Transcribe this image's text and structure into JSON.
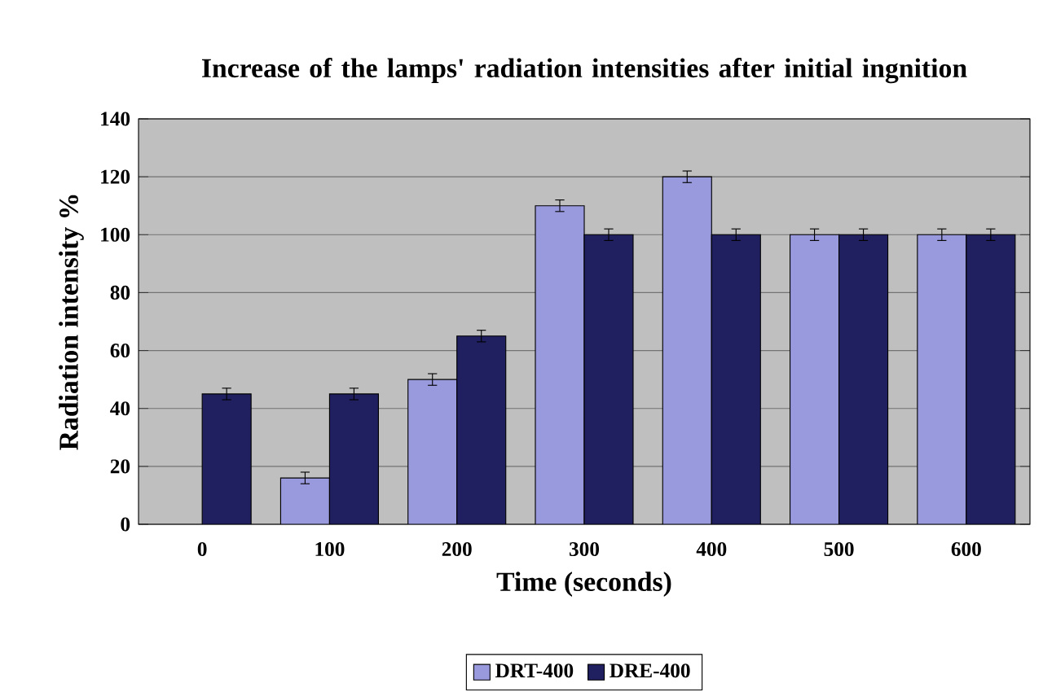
{
  "chart_data": {
    "type": "bar",
    "title": "Increase of the lamps' radiation intensities after initial ingnition",
    "xlabel": "Time (seconds)",
    "ylabel": "Radiation intensity %",
    "categories": [
      "0",
      "100",
      "200",
      "300",
      "400",
      "500",
      "600"
    ],
    "series": [
      {
        "name": "DRT-400",
        "color": "#9999dd",
        "values": [
          null,
          16,
          50,
          110,
          120,
          100,
          100
        ],
        "errors": [
          null,
          2,
          2,
          2,
          2,
          2,
          2
        ]
      },
      {
        "name": "DRE-400",
        "color": "#202060",
        "values": [
          45,
          45,
          65,
          100,
          100,
          100,
          100
        ],
        "errors": [
          2,
          2,
          2,
          2,
          2,
          2,
          2
        ]
      }
    ],
    "ylim": [
      0,
      140
    ],
    "yticks": [
      0,
      20,
      40,
      60,
      80,
      100,
      120,
      140
    ],
    "grid": "y",
    "legend": "bottom"
  }
}
